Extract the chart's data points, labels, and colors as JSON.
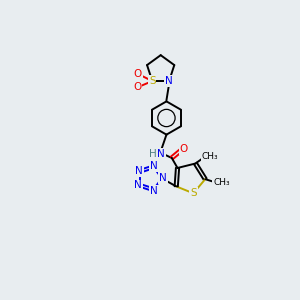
{
  "bg": "#e8edf0",
  "colors": {
    "C": "#000000",
    "N": "#0000ee",
    "O": "#ee0000",
    "S": "#bbaa00",
    "H": "#4d8080"
  },
  "lw": 1.4,
  "lw_d": 1.4
}
